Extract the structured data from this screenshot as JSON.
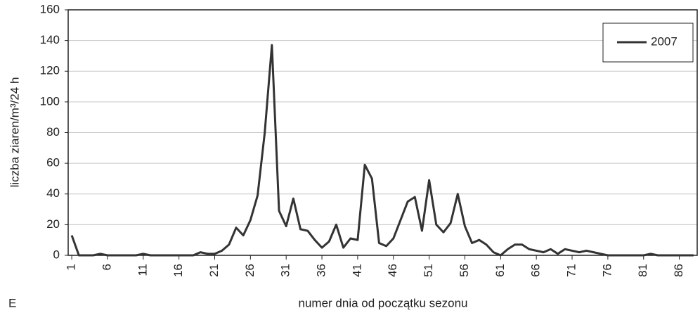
{
  "chart_data": {
    "type": "line",
    "panel_label": "E",
    "xlabel": "numer dnia od początku sezonu",
    "ylabel": "liczba ziaren/m³/24 h",
    "x": [
      1,
      2,
      3,
      4,
      5,
      6,
      7,
      8,
      9,
      10,
      11,
      12,
      13,
      14,
      15,
      16,
      17,
      18,
      19,
      20,
      21,
      22,
      23,
      24,
      25,
      26,
      27,
      28,
      29,
      30,
      31,
      32,
      33,
      34,
      35,
      36,
      37,
      38,
      39,
      40,
      41,
      42,
      43,
      44,
      45,
      46,
      47,
      48,
      49,
      50,
      51,
      52,
      53,
      54,
      55,
      56,
      57,
      58,
      59,
      60,
      61,
      62,
      63,
      64,
      65,
      66,
      67,
      68,
      69,
      70,
      71,
      72,
      73,
      74,
      75,
      76,
      77,
      78,
      79,
      80,
      81,
      82,
      83,
      84,
      85,
      86,
      87,
      88
    ],
    "series": [
      {
        "name": "2007",
        "color": "#333333",
        "values": [
          13,
          0,
          0,
          0,
          1,
          0,
          0,
          0,
          0,
          0,
          1,
          0,
          0,
          0,
          0,
          0,
          0,
          0,
          2,
          1,
          1,
          3,
          7,
          18,
          13,
          23,
          39,
          80,
          137,
          29,
          19,
          37,
          17,
          16,
          10,
          5,
          9,
          20,
          5,
          11,
          10,
          59,
          50,
          8,
          6,
          11,
          23,
          35,
          38,
          16,
          49,
          20,
          15,
          21,
          40,
          19,
          8,
          10,
          7,
          2,
          0,
          4,
          7,
          7,
          4,
          3,
          2,
          4,
          1,
          4,
          3,
          2,
          3,
          2,
          1,
          0,
          0,
          0,
          0,
          0,
          0,
          1,
          0,
          0,
          0,
          0,
          0,
          0
        ]
      }
    ],
    "xlim": [
      0.5,
      88.5
    ],
    "xticks": [
      1,
      6,
      11,
      16,
      21,
      26,
      31,
      36,
      41,
      46,
      51,
      56,
      61,
      66,
      71,
      76,
      81,
      86
    ],
    "ylim": [
      0,
      160
    ],
    "yticks": [
      0,
      20,
      40,
      60,
      80,
      100,
      120,
      140,
      160
    ],
    "grid": true,
    "legend": "upper right"
  }
}
